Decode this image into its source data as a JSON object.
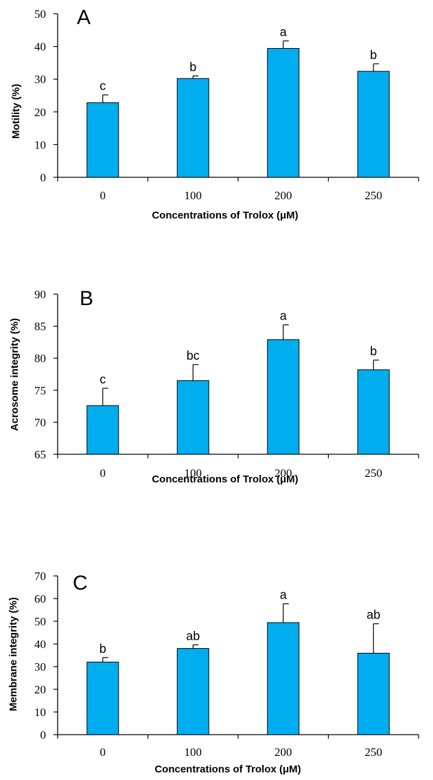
{
  "chart_data": [
    {
      "type": "bar",
      "panel_label": "A",
      "categories": [
        "0",
        "100",
        "200",
        "250"
      ],
      "values": [
        22.8,
        30.2,
        39.4,
        32.4
      ],
      "error_bars": [
        2.4,
        0.8,
        2.3,
        2.3
      ],
      "annotations": [
        "c",
        "b",
        "a",
        "b"
      ],
      "xlabel": "Concentrations of Trolox (μM)",
      "ylabel": "Motility (%)",
      "ylim": [
        0,
        50
      ],
      "yticks": [
        "0",
        "10",
        "20",
        "30",
        "40",
        "50"
      ],
      "bar_color": "#00AEEF",
      "grid": false
    },
    {
      "type": "bar",
      "panel_label": "B",
      "categories": [
        "0",
        "100",
        "200",
        "250"
      ],
      "values": [
        72.6,
        76.5,
        82.9,
        78.2
      ],
      "error_bars": [
        2.7,
        2.5,
        2.3,
        1.5
      ],
      "annotations": [
        "c",
        "bc",
        "a",
        "b"
      ],
      "xlabel": "Concentrations of Trolox (μM)",
      "ylabel": "Acrosome integrity (%)",
      "ylim": [
        65,
        90
      ],
      "yticks": [
        "65",
        "70",
        "75",
        "80",
        "85",
        "90"
      ],
      "bar_color": "#00AEEF",
      "grid": false
    },
    {
      "type": "bar",
      "panel_label": "C",
      "categories": [
        "0",
        "100",
        "200",
        "250"
      ],
      "values": [
        32.0,
        38.0,
        49.4,
        35.9
      ],
      "error_bars": [
        2.0,
        1.6,
        8.3,
        13.0
      ],
      "annotations": [
        "b",
        "ab",
        "a",
        "ab"
      ],
      "xlabel": "Concentrations of Trolox (μM)",
      "ylabel": "Membrane integrity (%)",
      "ylim": [
        0,
        70
      ],
      "yticks": [
        "0",
        "10",
        "20",
        "30",
        "40",
        "50",
        "60",
        "70"
      ],
      "bar_color": "#00AEEF",
      "grid": false
    }
  ]
}
